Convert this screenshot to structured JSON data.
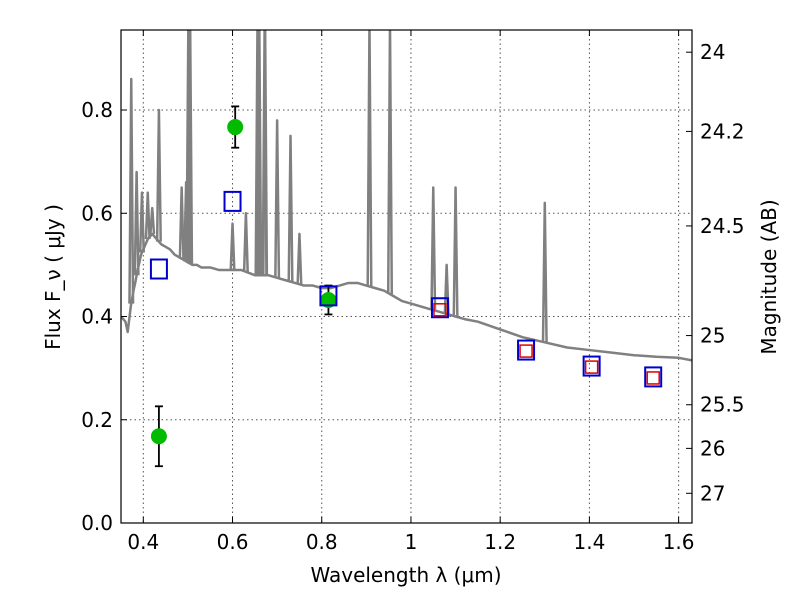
{
  "chart_data": {
    "type": "scatter",
    "xlabel": "Wavelength  λ (μm)",
    "ylabel": "Flux  F_ν  ( μJy )",
    "ylabel_right": "Magnitude (AB)",
    "xlim": [
      0.35,
      1.63
    ],
    "ylim": [
      0.0,
      0.955
    ],
    "grid": true,
    "x_ticks": [
      {
        "value": 0.4,
        "label": "0.4"
      },
      {
        "value": 0.6,
        "label": "0.6"
      },
      {
        "value": 0.8,
        "label": "0.8"
      },
      {
        "value": 1.0,
        "label": "1"
      },
      {
        "value": 1.2,
        "label": "1.2"
      },
      {
        "value": 1.4,
        "label": "1.4"
      },
      {
        "value": 1.6,
        "label": "1.6"
      }
    ],
    "y_ticks": [
      {
        "value": 0.0,
        "label": "0.0"
      },
      {
        "value": 0.2,
        "label": "0.2"
      },
      {
        "value": 0.4,
        "label": "0.4"
      },
      {
        "value": 0.6,
        "label": "0.6"
      },
      {
        "value": 0.8,
        "label": "0.8"
      }
    ],
    "y_right_ticks": [
      {
        "value": 24,
        "label": "24"
      },
      {
        "value": 24.2,
        "label": "24.2"
      },
      {
        "value": 24.5,
        "label": "24.5"
      },
      {
        "value": 25,
        "label": "25"
      },
      {
        "value": 25.5,
        "label": "25.5"
      },
      {
        "value": 26,
        "label": "26"
      },
      {
        "value": 27,
        "label": "27"
      }
    ],
    "series": [
      {
        "kind": "line",
        "color": "#808080",
        "x": [
          0.35,
          0.36,
          0.365,
          0.372,
          0.378,
          0.383,
          0.387,
          0.39,
          0.395,
          0.4,
          0.41,
          0.42,
          0.43,
          0.44,
          0.45,
          0.46,
          0.47,
          0.48,
          0.49,
          0.5,
          0.51,
          0.52,
          0.53,
          0.55,
          0.57,
          0.6,
          0.62,
          0.65,
          0.68,
          0.7,
          0.72,
          0.74,
          0.76,
          0.78,
          0.8,
          0.82,
          0.84,
          0.86,
          0.88,
          0.9,
          0.92,
          0.94,
          0.96,
          0.98,
          1.0,
          1.02,
          1.04,
          1.06,
          1.08,
          1.1,
          1.12,
          1.15,
          1.2,
          1.25,
          1.3,
          1.35,
          1.4,
          1.45,
          1.5,
          1.55,
          1.6,
          1.63
        ],
        "y": [
          0.4,
          0.39,
          0.37,
          0.42,
          0.45,
          0.47,
          0.49,
          0.5,
          0.52,
          0.53,
          0.55,
          0.56,
          0.55,
          0.54,
          0.535,
          0.53,
          0.52,
          0.515,
          0.51,
          0.505,
          0.5,
          0.5,
          0.495,
          0.495,
          0.49,
          0.49,
          0.49,
          0.48,
          0.48,
          0.475,
          0.47,
          0.465,
          0.46,
          0.46,
          0.455,
          0.455,
          0.46,
          0.465,
          0.465,
          0.46,
          0.455,
          0.45,
          0.44,
          0.43,
          0.425,
          0.42,
          0.415,
          0.41,
          0.405,
          0.4,
          0.395,
          0.39,
          0.375,
          0.36,
          0.35,
          0.34,
          0.335,
          0.33,
          0.325,
          0.322,
          0.32,
          0.315
        ]
      },
      {
        "kind": "emission-lines",
        "color": "#808080",
        "x": [
          0.373,
          0.385,
          0.397,
          0.41,
          0.42,
          0.435,
          0.486,
          0.496,
          0.501,
          0.505,
          0.6,
          0.63,
          0.656,
          0.66,
          0.672,
          0.673,
          0.7,
          0.73,
          0.75,
          0.907,
          0.953,
          1.05,
          1.08,
          1.1,
          1.3
        ],
        "y": [
          0.86,
          0.68,
          0.64,
          0.64,
          0.61,
          0.8,
          0.65,
          0.66,
          0.97,
          0.97,
          0.58,
          0.6,
          0.97,
          0.97,
          0.97,
          0.97,
          0.78,
          0.75,
          0.56,
          0.97,
          0.97,
          0.65,
          0.5,
          0.65,
          0.62
        ]
      },
      {
        "kind": "scatter",
        "name": "",
        "marker": "circle",
        "color": "#00bb00",
        "x": [
          0.435,
          0.606,
          0.815
        ],
        "y": [
          0.168,
          0.767,
          0.432
        ],
        "yerr": [
          0.058,
          0.04,
          0.028
        ]
      },
      {
        "kind": "scatter",
        "name": "",
        "marker": "open-square",
        "color": "#0000cc",
        "x": [
          0.435,
          0.6,
          0.815,
          1.065,
          1.258,
          1.405,
          1.543
        ],
        "y": [
          0.492,
          0.623,
          0.44,
          0.417,
          0.335,
          0.304,
          0.283
        ]
      },
      {
        "kind": "scatter",
        "name": "",
        "marker": "open-square-small",
        "color": "#dd0000",
        "x": [
          1.065,
          1.258,
          1.405,
          1.543
        ],
        "y": [
          0.413,
          0.333,
          0.302,
          0.281
        ]
      }
    ]
  }
}
